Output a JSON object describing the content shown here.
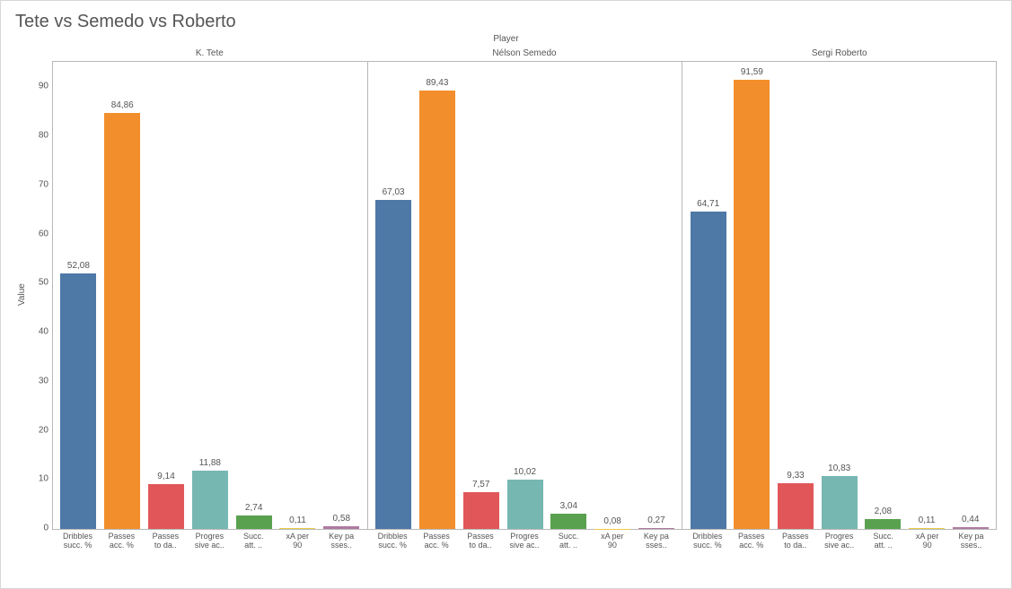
{
  "title": "Tete vs Semedo vs Roberto",
  "header_label": "Player",
  "y_axis_label": "Value",
  "y_axis": {
    "min": 0,
    "max": 95,
    "ticks": [
      0,
      10,
      20,
      30,
      40,
      50,
      60,
      70,
      80,
      90
    ]
  },
  "metrics": [
    {
      "key": "dribbles",
      "label_lines": [
        "Dribbles",
        "succ. %"
      ],
      "color": "#4e79a7"
    },
    {
      "key": "passes_acc",
      "label_lines": [
        "Passes",
        "acc. %"
      ],
      "color": "#f28e2b"
    },
    {
      "key": "passes_to",
      "label_lines": [
        "Passes",
        "to da.."
      ],
      "color": "#e15759"
    },
    {
      "key": "progressive",
      "label_lines": [
        "Progres",
        "sive ac.."
      ],
      "color": "#76b7b2"
    },
    {
      "key": "succ_att",
      "label_lines": [
        "Succ.",
        "att. .."
      ],
      "color": "#59a14f"
    },
    {
      "key": "xa",
      "label_lines": [
        "xA per",
        "90"
      ],
      "color": "#edc948"
    },
    {
      "key": "key_passes",
      "label_lines": [
        "Key pa",
        "sses.."
      ],
      "color": "#b07aa1"
    }
  ],
  "players": [
    {
      "name": "K. Tete",
      "values": {
        "dribbles": 52.08,
        "passes_acc": 84.86,
        "passes_to": 9.14,
        "progressive": 11.88,
        "succ_att": 2.74,
        "xa": 0.11,
        "key_passes": 0.58
      },
      "display": {
        "dribbles": "52,08",
        "passes_acc": "84,86",
        "passes_to": "9,14",
        "progressive": "11,88",
        "succ_att": "2,74",
        "xa": "0,11",
        "key_passes": "0,58"
      }
    },
    {
      "name": "Nélson Semedo",
      "values": {
        "dribbles": 67.03,
        "passes_acc": 89.43,
        "passes_to": 7.57,
        "progressive": 10.02,
        "succ_att": 3.04,
        "xa": 0.08,
        "key_passes": 0.27
      },
      "display": {
        "dribbles": "67,03",
        "passes_acc": "89,43",
        "passes_to": "7,57",
        "progressive": "10,02",
        "succ_att": "3,04",
        "xa": "0,08",
        "key_passes": "0,27"
      }
    },
    {
      "name": "Sergi Roberto",
      "values": {
        "dribbles": 64.71,
        "passes_acc": 91.59,
        "passes_to": 9.33,
        "progressive": 10.83,
        "succ_att": 2.08,
        "xa": 0.11,
        "key_passes": 0.44
      },
      "display": {
        "dribbles": "64,71",
        "passes_acc": "91,59",
        "passes_to": "9,33",
        "progressive": "10,83",
        "succ_att": "2,08",
        "xa": "0,11",
        "key_passes": "0,44"
      }
    }
  ],
  "styling": {
    "background_color": "#ffffff",
    "border_color": "#d8d8d8",
    "axis_line_color": "#b8b8b8",
    "text_color": "#555555",
    "title_fontsize": 20,
    "label_fontsize": 10,
    "axis_tick_fontsize": 10,
    "value_label_fontsize": 10,
    "x_label_fontsize": 9,
    "bar_width_ratio": 0.82
  }
}
